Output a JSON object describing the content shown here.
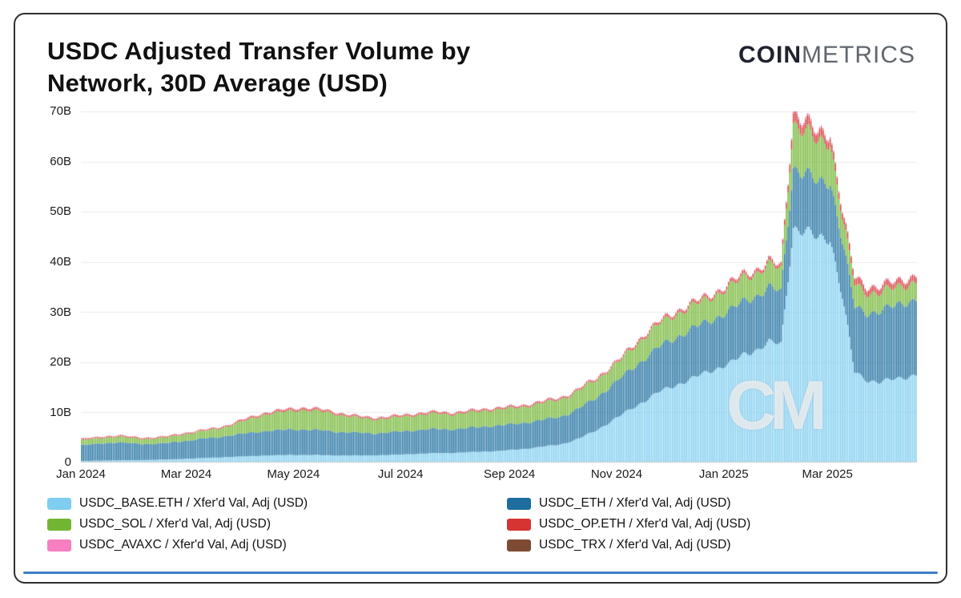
{
  "header": {
    "title": "USDC Adjusted Transfer Volume by Network, 30D Average (USD)",
    "logo_coin": "COIN",
    "logo_metrics": "METRICS"
  },
  "chart_data": {
    "type": "bar",
    "stacked": true,
    "title": "USDC Adjusted Transfer Volume by Network, 30D Average (USD)",
    "unit": "USD (billions)",
    "start_date": "2024-01-01",
    "sample_interval_days": 7,
    "ylim": [
      0,
      70
    ],
    "ytick_values": [
      0,
      10,
      20,
      30,
      40,
      50,
      60,
      70
    ],
    "ytick_labels": [
      "0",
      "10B",
      "20B",
      "30B",
      "40B",
      "50B",
      "60B",
      "70B"
    ],
    "xticks": [
      {
        "label": "Jan 2024",
        "day": 0
      },
      {
        "label": "Mar 2024",
        "day": 60
      },
      {
        "label": "May 2024",
        "day": 121
      },
      {
        "label": "Jul 2024",
        "day": 182
      },
      {
        "label": "Sep 2024",
        "day": 244
      },
      {
        "label": "Nov 2024",
        "day": 305
      },
      {
        "label": "Jan 2025",
        "day": 366
      },
      {
        "label": "Mar 2025",
        "day": 425
      }
    ],
    "watermark": "CM",
    "grid": true,
    "legend_position": "bottom",
    "series": [
      {
        "name": "USDC_BASE.ETH / Xfer'd Val, Adj (USD)",
        "color": "#7fcdf0",
        "values": [
          0.3,
          0.35,
          0.4,
          0.45,
          0.45,
          0.5,
          0.55,
          0.6,
          0.7,
          0.8,
          0.9,
          1.0,
          1.1,
          1.2,
          1.3,
          1.4,
          1.45,
          1.5,
          1.5,
          1.5,
          1.45,
          1.4,
          1.4,
          1.4,
          1.45,
          1.5,
          1.6,
          1.7,
          1.8,
          1.9,
          1.9,
          2.0,
          2.1,
          2.2,
          2.3,
          2.5,
          2.7,
          3.0,
          3.3,
          3.6,
          4.3,
          5.3,
          6.5,
          8.0,
          9.5,
          11.0,
          12.5,
          14.0,
          15.0,
          16.0,
          17.0,
          18.0,
          19.0,
          20.0,
          21.5,
          22.5,
          24.0,
          23.5,
          47.0,
          46.0,
          44.5,
          45.0,
          33.0,
          18.0,
          16.5,
          16.0,
          16.5,
          17.0,
          17.5
        ]
      },
      {
        "name": "USDC_ETH / Xfer'd Val, Adj (USD)",
        "color": "#1d6e9e",
        "values": [
          3.2,
          3.3,
          3.5,
          3.6,
          3.4,
          3.2,
          3.2,
          3.3,
          3.5,
          3.7,
          3.9,
          4.0,
          4.3,
          4.5,
          4.7,
          4.9,
          5.0,
          5.1,
          5.1,
          5.0,
          4.9,
          4.7,
          4.6,
          4.5,
          4.4,
          4.5,
          4.6,
          4.7,
          4.8,
          4.8,
          4.7,
          4.8,
          4.9,
          5.0,
          5.1,
          5.1,
          5.2,
          5.3,
          5.4,
          5.5,
          5.8,
          6.2,
          6.5,
          7.0,
          7.5,
          8.0,
          8.5,
          9.0,
          9.3,
          9.7,
          10.0,
          10.0,
          10.3,
          10.5,
          10.7,
          10.8,
          10.8,
          10.5,
          12.0,
          11.5,
          11.0,
          11.5,
          11.0,
          13.0,
          13.5,
          14.0,
          14.5,
          15.0,
          15.0
        ]
      },
      {
        "name": "USDC_SOL / Xfer'd Val, Adj (USD)",
        "color": "#72b533",
        "values": [
          1.0,
          1.05,
          1.1,
          1.15,
          1.05,
          1.0,
          1.05,
          1.1,
          1.3,
          1.4,
          1.5,
          1.7,
          1.9,
          2.4,
          2.9,
          3.3,
          3.5,
          3.7,
          3.9,
          3.8,
          3.7,
          3.4,
          3.1,
          2.9,
          2.8,
          2.8,
          2.9,
          3.0,
          3.0,
          3.1,
          3.0,
          3.0,
          3.1,
          3.2,
          3.2,
          3.2,
          3.2,
          3.3,
          3.4,
          3.5,
          3.5,
          3.6,
          3.6,
          3.6,
          3.6,
          4.0,
          4.5,
          4.5,
          4.6,
          4.7,
          4.5,
          4.5,
          4.7,
          4.8,
          4.7,
          4.6,
          4.6,
          4.4,
          9.0,
          8.5,
          8.0,
          8.0,
          5.0,
          4.5,
          4.0,
          3.8,
          3.6,
          3.5,
          3.5
        ]
      },
      {
        "name": "USDC_OP.ETH / Xfer'd Val, Adj (USD)",
        "color": "#d63333",
        "values": [
          0.2,
          0.2,
          0.2,
          0.2,
          0.2,
          0.2,
          0.2,
          0.2,
          0.2,
          0.2,
          0.2,
          0.2,
          0.2,
          0.3,
          0.3,
          0.3,
          0.35,
          0.4,
          0.4,
          0.4,
          0.35,
          0.35,
          0.3,
          0.3,
          0.3,
          0.3,
          0.3,
          0.3,
          0.3,
          0.3,
          0.3,
          0.3,
          0.3,
          0.3,
          0.3,
          0.3,
          0.3,
          0.3,
          0.3,
          0.3,
          0.3,
          0.3,
          0.3,
          0.3,
          0.3,
          0.4,
          0.4,
          0.4,
          0.5,
          0.5,
          0.5,
          0.5,
          0.5,
          0.6,
          0.6,
          0.6,
          0.6,
          0.6,
          2.0,
          1.8,
          1.6,
          1.6,
          1.2,
          1.3,
          1.2,
          1.1,
          1.1,
          1.1,
          1.2
        ]
      },
      {
        "name": "USDC_AVAXC / Xfer'd Val, Adj (USD)",
        "color": "#f57fc0",
        "values": [
          0.05,
          0.05,
          0.05,
          0.05,
          0.05,
          0.05,
          0.05,
          0.05,
          0.06,
          0.06,
          0.06,
          0.06,
          0.06,
          0.08,
          0.08,
          0.08,
          0.08,
          0.08,
          0.08,
          0.08,
          0.07,
          0.07,
          0.07,
          0.07,
          0.07,
          0.07,
          0.08,
          0.08,
          0.08,
          0.08,
          0.08,
          0.08,
          0.08,
          0.08,
          0.08,
          0.09,
          0.09,
          0.09,
          0.09,
          0.09,
          0.1,
          0.1,
          0.1,
          0.1,
          0.1,
          0.1,
          0.1,
          0.1,
          0.12,
          0.12,
          0.12,
          0.12,
          0.12,
          0.12,
          0.12,
          0.12,
          0.12,
          0.12,
          0.3,
          0.3,
          0.25,
          0.25,
          0.2,
          0.15,
          0.15,
          0.15,
          0.15,
          0.15,
          0.15
        ]
      },
      {
        "name": "USDC_TRX / Xfer'd Val, Adj (USD)",
        "color": "#7d4b33",
        "values": [
          0.03,
          0.03,
          0.03,
          0.03,
          0.03,
          0.03,
          0.03,
          0.03,
          0.03,
          0.03,
          0.03,
          0.03,
          0.03,
          0.03,
          0.03,
          0.03,
          0.03,
          0.03,
          0.03,
          0.03,
          0.03,
          0.03,
          0.03,
          0.03,
          0.03,
          0.03,
          0.03,
          0.03,
          0.03,
          0.03,
          0.03,
          0.03,
          0.03,
          0.03,
          0.03,
          0.03,
          0.03,
          0.03,
          0.03,
          0.03,
          0.04,
          0.04,
          0.04,
          0.04,
          0.04,
          0.04,
          0.04,
          0.04,
          0.04,
          0.04,
          0.04,
          0.04,
          0.04,
          0.05,
          0.05,
          0.05,
          0.05,
          0.05,
          0.08,
          0.08,
          0.08,
          0.08,
          0.06,
          0.05,
          0.05,
          0.05,
          0.05,
          0.05,
          0.05
        ]
      }
    ]
  }
}
